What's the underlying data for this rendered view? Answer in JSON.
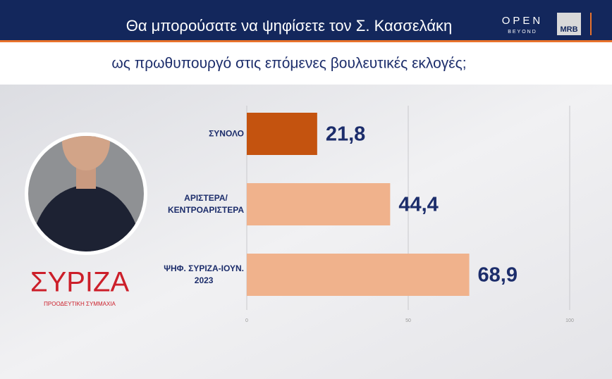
{
  "chart_data": {
    "type": "bar",
    "orientation": "horizontal",
    "title": "Θα μπορούσατε να ψηφίσετε τον Σ. Κασσελάκη",
    "subtitle": "ως πρωθυπουργό στις επόμενες βουλευτικές εκλογές;",
    "categories": [
      "ΣΥΝΟΛΟ",
      "ΑΡΙΣΤΕΡΑ/\nΚΕΝΤΡΟΑΡΙΣΤΕΡΑ",
      "ΨΗΦ. ΣΥΡΙΖΑ-ΙΟΥΝ.\n2023"
    ],
    "values": [
      21.8,
      44.4,
      68.9
    ],
    "value_labels": [
      "21,8",
      "44,4",
      "68,9"
    ],
    "colors": [
      "#c4530f",
      "#f0b28c",
      "#f0b28c"
    ],
    "xlim": [
      0,
      100
    ],
    "xticks": [
      0,
      50,
      100
    ],
    "grid": true
  },
  "branding": {
    "channel": "OPEN",
    "channel_tagline": "BEYOND",
    "pollster": "MRB",
    "party": "ΣΥΡΙΖΑ",
    "party_tagline": "ΠΡΟΟΔΕΥΤΙΚΗ ΣΥΜΜΑΧΙΑ"
  }
}
